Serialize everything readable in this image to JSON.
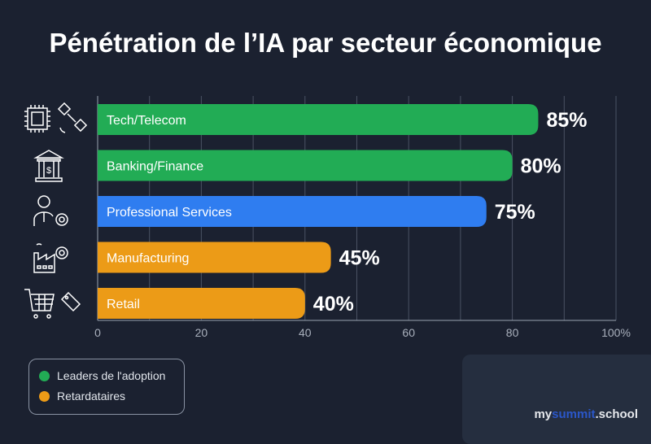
{
  "title": "Pénétration de l’IA par secteur économique",
  "chart_data": {
    "type": "bar",
    "orientation": "horizontal",
    "categories": [
      "Tech/Telecom",
      "Banking/Finance",
      "Professional Services",
      "Manufacturing",
      "Retail"
    ],
    "values": [
      85,
      80,
      75,
      45,
      40
    ],
    "data_labels": [
      "85%",
      "80%",
      "75%",
      "45%",
      "40%"
    ],
    "bar_colors": [
      "#22ac55",
      "#22ac55",
      "#2f7df0",
      "#ec9b17",
      "#ec9b17"
    ],
    "xlim": [
      0,
      100
    ],
    "xticks": [
      "0",
      "20",
      "40",
      "60",
      "80",
      "100%"
    ],
    "grid": true,
    "legend_placement": "bottom-left",
    "category_icons": [
      "chip-satellite-icon",
      "bank-icon",
      "businessman-gear-icon",
      "factory-gear-icon",
      "cart-tag-icon"
    ]
  },
  "legend": [
    {
      "label": "Leaders de l'adoption",
      "color": "#22ac55"
    },
    {
      "label": "Retardataires",
      "color": "#ec9b17"
    }
  ],
  "brand": {
    "my": "my",
    "summit": "summit",
    "school": ".school"
  }
}
